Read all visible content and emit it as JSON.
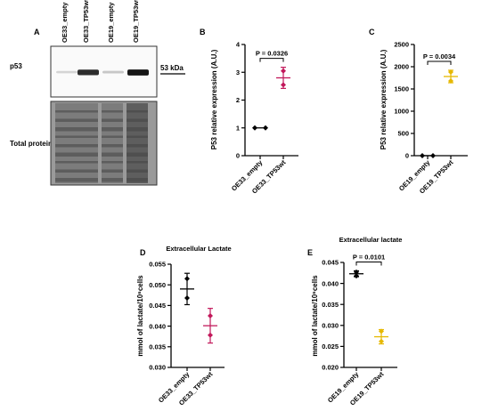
{
  "panelA": {
    "letter": "A",
    "lanes": [
      "OE33_empty",
      "OE33_TP53wt",
      "OE19_empty",
      "OE19_TP53wt"
    ],
    "row_label_top": "p53",
    "row_label_bottom": "Total protein",
    "marker": "53 kDa",
    "band_intensity": [
      0.12,
      0.85,
      0.18,
      0.95
    ]
  },
  "chart_data": [
    {
      "panel": "B",
      "type": "scatter",
      "title": "",
      "ylabel": "P53 relative expression (A.U.)",
      "xlabel": "",
      "categories": [
        "OE33_empty",
        "OE33_TP53wt"
      ],
      "ylim": [
        0,
        4
      ],
      "yticks": [
        "0",
        "1",
        "2",
        "3",
        "4"
      ],
      "yticks_values": [
        0,
        1,
        2,
        3,
        4
      ],
      "annotation": "P = 0.0326",
      "colors": [
        "#000000",
        "#c2185b"
      ],
      "series": [
        {
          "category": "OE33_empty",
          "points": [
            1.0,
            1.0
          ],
          "mean": 1.0,
          "err": 0
        },
        {
          "category": "OE33_TP53wt",
          "points": [
            3.05,
            2.55
          ],
          "mean": 2.8,
          "err": 0.38
        }
      ]
    },
    {
      "panel": "C",
      "type": "scatter",
      "title": "",
      "ylabel": "P53 relative expression (A.U.)",
      "xlabel": "",
      "categories": [
        "OE19_empty",
        "OE19_TP53wt"
      ],
      "ylim": [
        0,
        2500
      ],
      "yticks": [
        "0",
        "500",
        "1000",
        "1500",
        "2000",
        "2500"
      ],
      "yticks_values": [
        0,
        500,
        1000,
        1500,
        2000,
        2500
      ],
      "annotation": "P = 0.0034",
      "colors": [
        "#000000",
        "#e6b800"
      ],
      "series": [
        {
          "category": "OE19_empty",
          "points": [
            1,
            1
          ],
          "mean": 1,
          "err": 0
        },
        {
          "category": "OE19_TP53wt",
          "points": [
            1880,
            1680
          ],
          "mean": 1780,
          "err": 140
        }
      ]
    },
    {
      "panel": "D",
      "type": "scatter",
      "title": "Extracellular Lactate",
      "ylabel": "mmol of lactate/10⁶cells",
      "xlabel": "",
      "categories": [
        "OE33_empty",
        "OE33_TP53wt"
      ],
      "ylim": [
        0.03,
        0.055
      ],
      "yticks": [
        "0.030",
        "0.035",
        "0.040",
        "0.045",
        "0.050",
        "0.055"
      ],
      "yticks_values": [
        0.03,
        0.035,
        0.04,
        0.045,
        0.05,
        0.055
      ],
      "annotation": "",
      "colors": [
        "#000000",
        "#c2185b"
      ],
      "series": [
        {
          "category": "OE33_empty",
          "points": [
            0.0515,
            0.0468
          ],
          "mean": 0.049,
          "err": 0.0038
        },
        {
          "category": "OE33_TP53wt",
          "points": [
            0.0425,
            0.0378
          ],
          "mean": 0.0401,
          "err": 0.0042
        }
      ]
    },
    {
      "panel": "E",
      "type": "scatter",
      "title": "Extracellular lactate",
      "ylabel": "mmol of lactate/10⁶cells",
      "xlabel": "",
      "categories": [
        "OE19_empty",
        "OE19_TP53wt"
      ],
      "ylim": [
        0.02,
        0.045
      ],
      "yticks": [
        "0.020",
        "0.025",
        "0.030",
        "0.035",
        "0.040",
        "0.045"
      ],
      "yticks_values": [
        0.02,
        0.025,
        0.03,
        0.035,
        0.04,
        0.045
      ],
      "annotation": "P = 0.0101",
      "colors": [
        "#000000",
        "#e6b800"
      ],
      "series": [
        {
          "category": "OE19_empty",
          "points": [
            0.0427,
            0.0418
          ],
          "mean": 0.0423,
          "err": 0.0007
        },
        {
          "category": "OE19_TP53wt",
          "points": [
            0.0286,
            0.0262
          ],
          "mean": 0.0273,
          "err": 0.0017
        }
      ]
    }
  ]
}
